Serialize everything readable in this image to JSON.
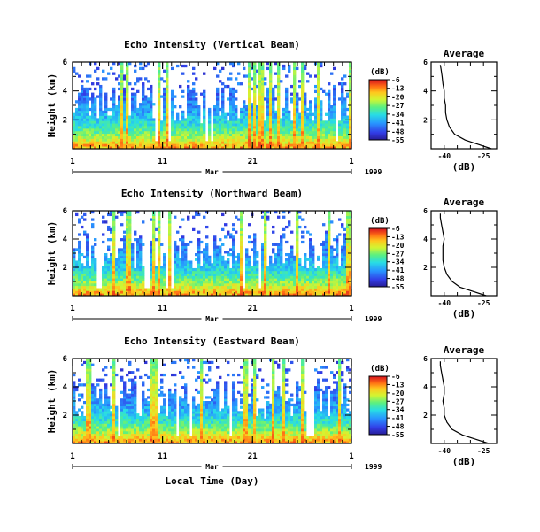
{
  "chart_data": [
    {
      "type": "heatmap",
      "title": "Echo Intensity (Vertical Beam)",
      "ylabel": "Height (km)",
      "ylim": [
        0,
        6
      ],
      "yticks": [
        2,
        4,
        6
      ],
      "xticks": [
        "1",
        "11",
        "21",
        "1"
      ],
      "xlim_days": [
        1,
        32
      ],
      "month_label": "Mar",
      "year_label": "1999",
      "colorbar": {
        "label": "(dB)",
        "ticks": [
          -6,
          -13,
          -20,
          -27,
          -34,
          -41,
          -48,
          -55
        ],
        "range": [
          -55,
          -6
        ]
      },
      "average_profile": {
        "title": "Average",
        "xlabel": "(dB)",
        "xticks": [
          -40,
          -25
        ],
        "xlim": [
          -45,
          -20
        ],
        "ylim": [
          0,
          6
        ],
        "yticks": [
          2,
          4,
          6
        ],
        "height_km": [
          0.0,
          0.3,
          0.6,
          1.0,
          1.5,
          2.0,
          2.5,
          3.0,
          3.5,
          4.0,
          4.5,
          5.0,
          5.5,
          5.8
        ],
        "value_db": [
          -22,
          -27,
          -32,
          -36,
          -38,
          -39,
          -39.5,
          -39.5,
          -40,
          -40,
          -40.5,
          -40.8,
          -41.2,
          -41.5
        ]
      }
    },
    {
      "type": "heatmap",
      "title": "Echo Intensity (Northward Beam)",
      "ylabel": "Height (km)",
      "ylim": [
        0,
        6
      ],
      "yticks": [
        2,
        4,
        6
      ],
      "xticks": [
        "1",
        "11",
        "21",
        "1"
      ],
      "xlim_days": [
        1,
        32
      ],
      "month_label": "Mar",
      "year_label": "1999",
      "colorbar": {
        "label": "(dB)",
        "ticks": [
          -6,
          -13,
          -20,
          -27,
          -34,
          -41,
          -48,
          -55
        ],
        "range": [
          -55,
          -6
        ]
      },
      "average_profile": {
        "title": "Average",
        "xlabel": "(dB)",
        "xticks": [
          -40,
          -25
        ],
        "xlim": [
          -45,
          -20
        ],
        "ylim": [
          0,
          6
        ],
        "yticks": [
          2,
          4,
          6
        ],
        "height_km": [
          0.0,
          0.3,
          0.6,
          1.0,
          1.5,
          2.0,
          2.5,
          3.0,
          3.5,
          4.0,
          4.5,
          5.0,
          5.5,
          5.8
        ],
        "value_db": [
          -24,
          -29,
          -34,
          -37,
          -39,
          -40,
          -40.5,
          -40.5,
          -40.5,
          -40,
          -40.5,
          -41,
          -41.5,
          -41.5
        ]
      }
    },
    {
      "type": "heatmap",
      "title": "Echo Intensity (Eastward Beam)",
      "ylabel": "Height (km)",
      "xlabel": "Local Time (Day)",
      "ylim": [
        0,
        6
      ],
      "yticks": [
        2,
        4,
        6
      ],
      "xticks": [
        "1",
        "11",
        "21",
        "1"
      ],
      "xlim_days": [
        1,
        32
      ],
      "month_label": "Mar",
      "year_label": "1999",
      "colorbar": {
        "label": "(dB)",
        "ticks": [
          -6,
          -13,
          -20,
          -27,
          -34,
          -41,
          -48,
          -55
        ],
        "range": [
          -55,
          -6
        ]
      },
      "average_profile": {
        "title": "Average",
        "xlabel": "(dB)",
        "xticks": [
          -40,
          -25
        ],
        "xlim": [
          -45,
          -20
        ],
        "ylim": [
          0,
          6
        ],
        "yticks": [
          2,
          4,
          6
        ],
        "height_km": [
          0.0,
          0.3,
          0.6,
          1.0,
          1.5,
          2.0,
          2.5,
          3.0,
          3.5,
          4.0,
          4.5,
          5.0,
          5.5,
          5.8
        ],
        "value_db": [
          -23,
          -28,
          -33,
          -37,
          -39,
          -40,
          -40,
          -40.5,
          -40,
          -40,
          -40.5,
          -41,
          -41.5,
          -41.5
        ]
      }
    }
  ]
}
